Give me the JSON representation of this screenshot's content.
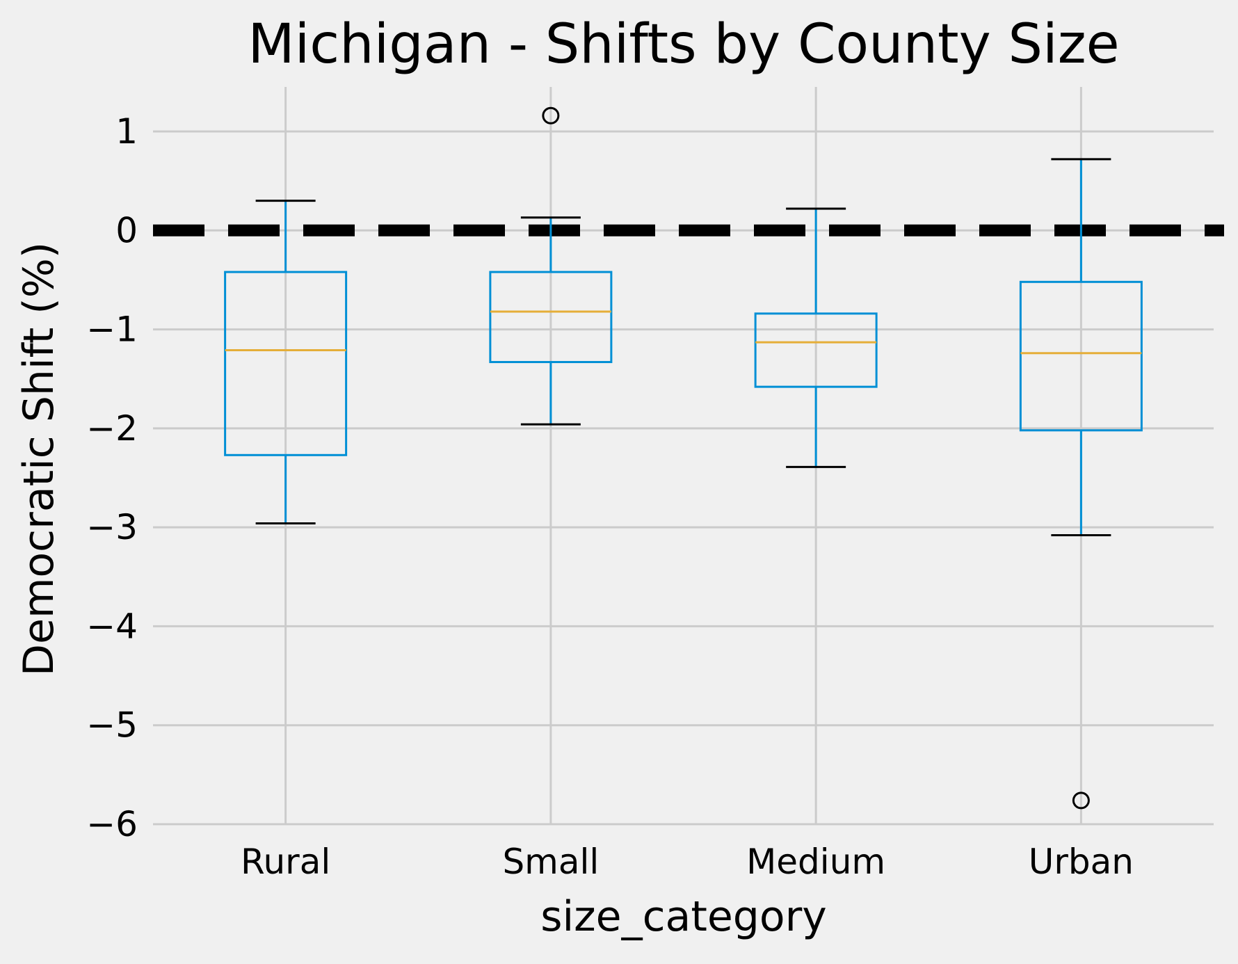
{
  "chart_data": {
    "type": "box",
    "title": "Michigan - Shifts by County Size",
    "xlabel": "size_category",
    "ylabel": "Democratic Shift (%)",
    "ylim": [
      -6.0,
      1.45
    ],
    "yticks": [
      1,
      0,
      -1,
      -2,
      -3,
      -4,
      -5,
      -6
    ],
    "ytick_labels": [
      "1",
      "0",
      "−1",
      "−2",
      "−3",
      "−4",
      "−5",
      "−6"
    ],
    "grid": true,
    "reference_line": {
      "y": 0,
      "style": "dashed",
      "color": "#000000"
    },
    "categories": [
      "Rural",
      "Small",
      "Medium",
      "Urban"
    ],
    "boxes": [
      {
        "category": "Rural",
        "whisker_low": -2.96,
        "q1": -2.27,
        "median": -1.21,
        "q3": -0.42,
        "whisker_high": 0.3,
        "outliers": []
      },
      {
        "category": "Small",
        "whisker_low": -1.96,
        "q1": -1.33,
        "median": -0.82,
        "q3": -0.42,
        "whisker_high": 0.13,
        "outliers": [
          1.16
        ]
      },
      {
        "category": "Medium",
        "whisker_low": -2.39,
        "q1": -1.58,
        "median": -1.13,
        "q3": -0.84,
        "whisker_high": 0.22,
        "outliers": []
      },
      {
        "category": "Urban",
        "whisker_low": -3.08,
        "q1": -2.02,
        "median": -1.24,
        "q3": -0.52,
        "whisker_high": 0.72,
        "outliers": [
          -5.76
        ]
      }
    ],
    "colors": {
      "background": "#f0f0f0",
      "grid": "#cbcbcb",
      "box": "#008fd5",
      "median": "#e5ae38",
      "caps": "#000000",
      "outlier": "#000000"
    }
  }
}
